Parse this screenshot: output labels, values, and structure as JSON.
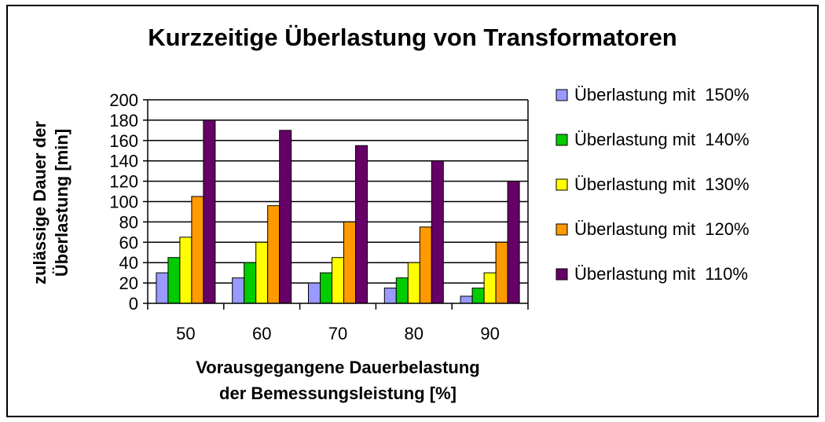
{
  "chart_data": {
    "type": "bar",
    "title": "Kurzzeitige Überlastung von Transformatoren",
    "xlabel": [
      "Vorausgegangene Dauerbelastung",
      "der Bemessungsleistung [%]"
    ],
    "ylabel": [
      "zulässige Dauer der",
      "Überlastung [min]"
    ],
    "categories": [
      "50",
      "60",
      "70",
      "80",
      "90"
    ],
    "ylim": [
      0,
      200
    ],
    "yticks": [
      "0",
      "20",
      "40",
      "60",
      "80",
      "100",
      "120",
      "140",
      "160",
      "180",
      "200"
    ],
    "grid": true,
    "legend_position": "right",
    "series": [
      {
        "name": "Überlastung mit  150%",
        "color": "#9999ff",
        "values": [
          30,
          25,
          20,
          15,
          7
        ]
      },
      {
        "name": "Überlastung mit  140%",
        "color": "#00cc00",
        "values": [
          45,
          40,
          30,
          25,
          15
        ]
      },
      {
        "name": "Überlastung mit  130%",
        "color": "#ffff00",
        "values": [
          65,
          60,
          45,
          40,
          30
        ]
      },
      {
        "name": "Überlastung mit  120%",
        "color": "#ff9900",
        "values": [
          105,
          96,
          80,
          75,
          60
        ]
      },
      {
        "name": "Überlastung mit  110%",
        "color": "#660066",
        "values": [
          180,
          170,
          155,
          140,
          120
        ]
      }
    ]
  }
}
